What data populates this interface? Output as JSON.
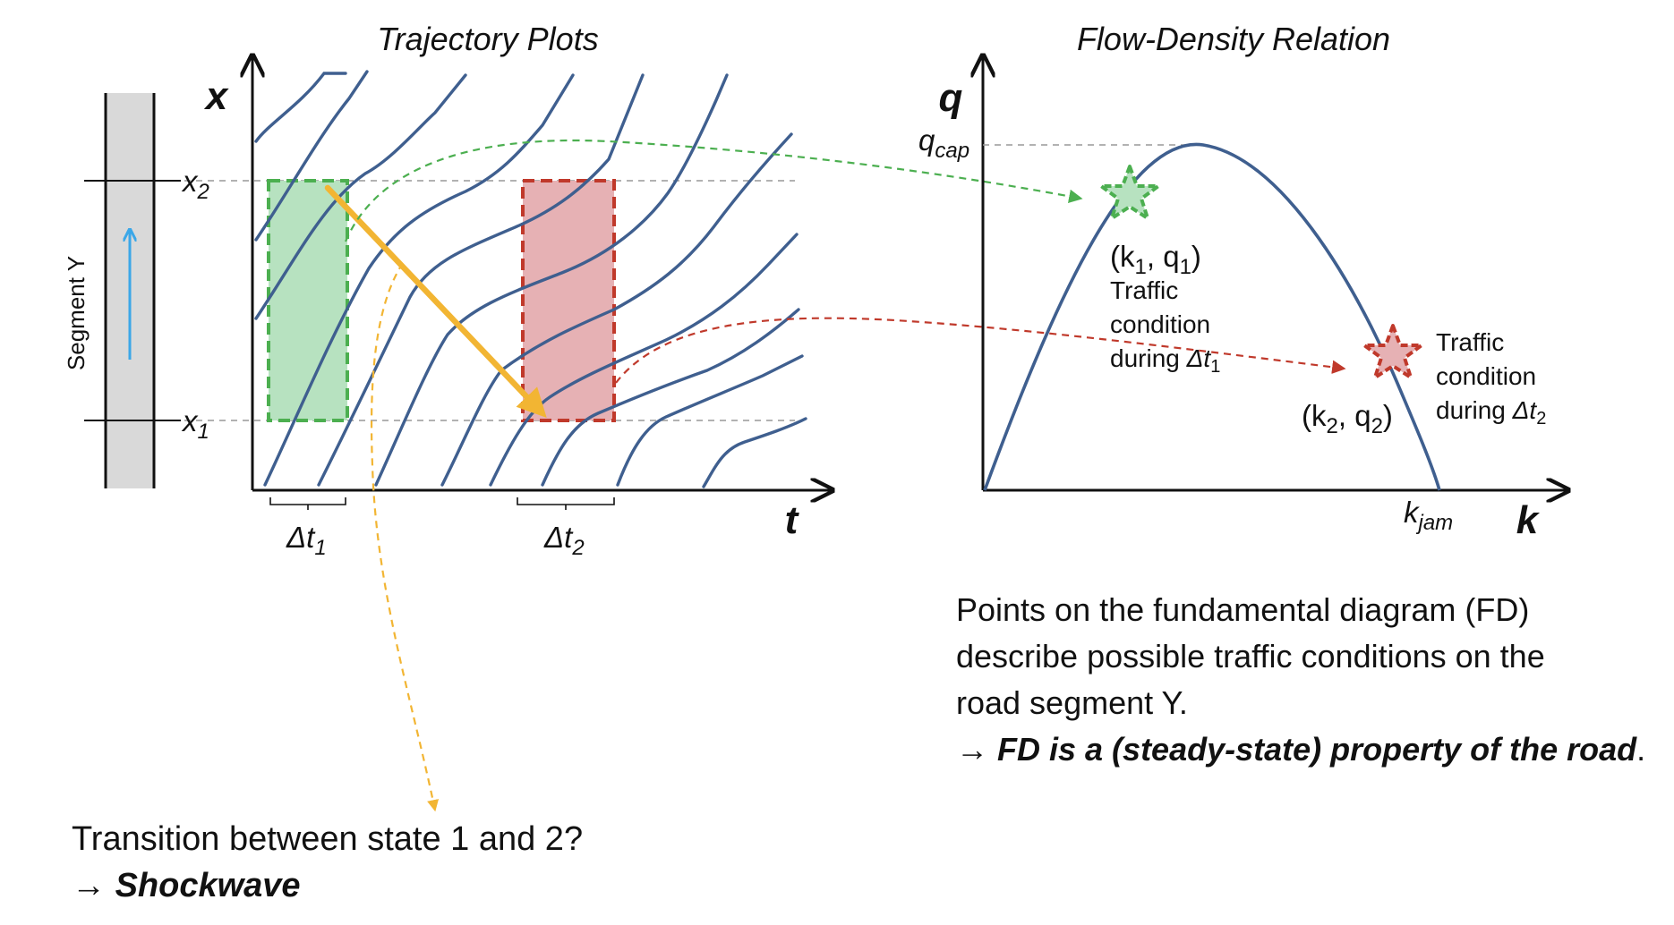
{
  "left_panel": {
    "title": "Trajectory Plots",
    "x_axis_label": "t",
    "y_axis_label": "x",
    "x2_label": "x",
    "x2_sub": "2",
    "x1_label": "x",
    "x1_sub": "1",
    "segment_label": "Segment Y",
    "dt1_label": "Δt",
    "dt1_sub": "1",
    "dt2_label": "Δt",
    "dt2_sub": "2"
  },
  "right_panel": {
    "title": "Flow-Density Relation",
    "y_axis_label": "q",
    "x_axis_label": "k",
    "qcap_label": "q",
    "qcap_sub": "cap",
    "kjam_label": "k",
    "kjam_sub": "jam",
    "point1": {
      "label_open": "(k",
      "label_sub1": "1",
      "label_mid": ", q",
      "label_sub2": "1",
      "label_close": ")",
      "desc_line1": "Traffic",
      "desc_line2": "condition",
      "desc_line3": "during ",
      "desc_dt": "Δt",
      "desc_sub": "1"
    },
    "point2": {
      "label_open": "(k",
      "label_sub1": "2",
      "label_mid": ", q",
      "label_sub2": "2",
      "label_close": ")",
      "desc_line1": "Traffic",
      "desc_line2": "condition",
      "desc_line3": "during ",
      "desc_dt": "Δt",
      "desc_sub": "2"
    }
  },
  "fd_text": {
    "line1": "Points on the fundamental diagram (FD)",
    "line2": "describe possible traffic conditions on the",
    "line3": "road segment Y.",
    "line4_arrow": "→ ",
    "line4": "FD is a (steady-state) property of the road",
    "line4_end": "."
  },
  "question_text": {
    "line1": "Transition between state 1 and 2?",
    "line2_arrow": "→ ",
    "line2": "Shockwave"
  },
  "colors": {
    "trajectory": "#3f5f8f",
    "green_box": "#4caf50",
    "green_fill": "#b7e2c0",
    "red_box": "#c0392b",
    "red_fill": "#e6b1b4",
    "shock_arrow": "#f2b533",
    "road": "#d9d9d9",
    "flow_arrow": "#3ba7e8",
    "fd_curve": "#3f5f8f"
  }
}
